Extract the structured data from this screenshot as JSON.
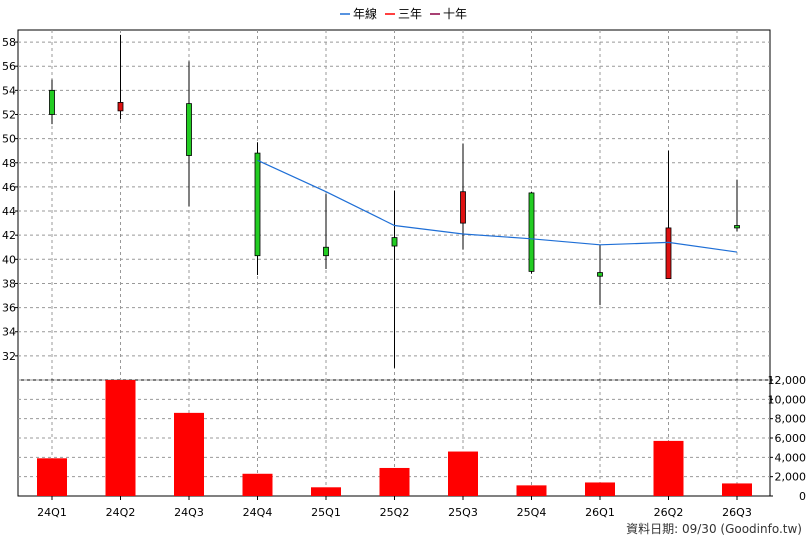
{
  "legend": [
    {
      "label": "年線",
      "color": "#1f6fd6"
    },
    {
      "label": "三年",
      "color": "#ff0000"
    },
    {
      "label": "十年",
      "color": "#8b0044"
    }
  ],
  "footer": "資料日期: 09/30  (Goodinfo.tw)",
  "chart_data": {
    "type": "candlestick+bar",
    "categories": [
      "24Q1",
      "24Q2",
      "24Q3",
      "24Q4",
      "25Q1",
      "25Q2",
      "25Q3",
      "25Q4",
      "26Q1",
      "26Q2",
      "26Q3"
    ],
    "price": {
      "ylim": [
        30,
        59
      ],
      "ticks": [
        32,
        34,
        36,
        38,
        40,
        42,
        44,
        46,
        48,
        50,
        52,
        54,
        56,
        58
      ],
      "candles": [
        {
          "o": 52.0,
          "h": 54.9,
          "l": 51.2,
          "c": 54.0
        },
        {
          "o": 53.0,
          "h": 58.6,
          "l": 51.6,
          "c": 52.3
        },
        {
          "o": 48.6,
          "h": 56.4,
          "l": 44.4,
          "c": 52.9
        },
        {
          "o": 40.3,
          "h": 49.7,
          "l": 38.7,
          "c": 48.8
        },
        {
          "o": 40.3,
          "h": 45.4,
          "l": 39.2,
          "c": 41.0
        },
        {
          "o": 41.1,
          "h": 45.7,
          "l": 31.0,
          "c": 41.8
        },
        {
          "o": 45.6,
          "h": 49.6,
          "l": 40.8,
          "c": 43.0
        },
        {
          "o": 39.0,
          "h": 45.6,
          "l": 38.8,
          "c": 45.5
        },
        {
          "o": 38.6,
          "h": 41.2,
          "l": 36.2,
          "c": 38.9
        },
        {
          "o": 42.6,
          "h": 49.0,
          "l": 38.4,
          "c": 38.4
        },
        {
          "o": 42.6,
          "h": 46.6,
          "l": 42.3,
          "c": 42.8
        }
      ],
      "year_line": {
        "from_index": 3,
        "values": [
          48.2,
          45.6,
          42.8,
          42.1,
          41.7,
          41.2,
          41.4,
          40.6
        ]
      }
    },
    "volume": {
      "ylim": [
        0,
        12000
      ],
      "ticks": [
        0,
        2000,
        4000,
        6000,
        8000,
        10000,
        12000
      ],
      "tick_labels": [
        "0",
        "2,000",
        "4,000",
        "6,000",
        "8,000",
        "10,000",
        "12,000"
      ],
      "values": [
        3900,
        12300,
        8600,
        2300,
        900,
        2900,
        4600,
        1100,
        1400,
        5700,
        1300
      ]
    }
  }
}
